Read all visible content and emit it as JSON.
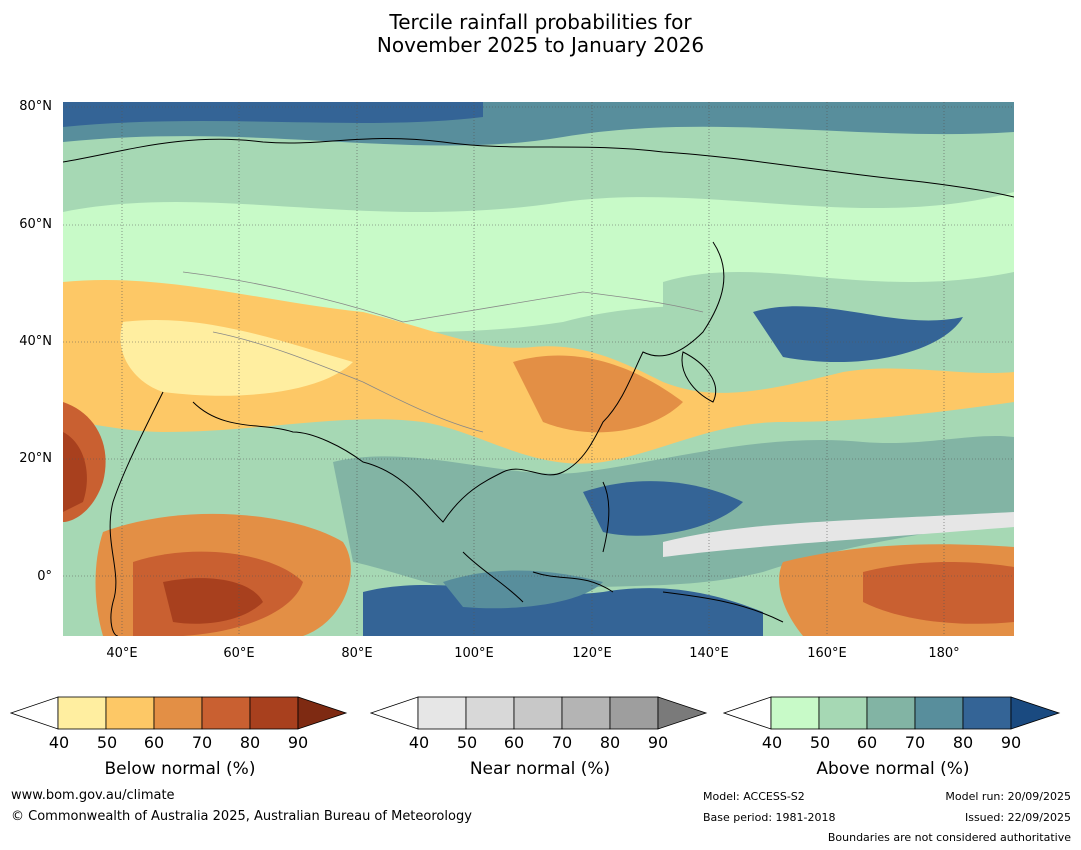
{
  "title": {
    "line1": "Tercile rainfall probabilities for",
    "line2": "November 2025 to January 2026"
  },
  "map": {
    "lat_labels": [
      "80°N",
      "60°N",
      "40°N",
      "20°N",
      "0°"
    ],
    "lon_labels": [
      "40°E",
      "60°E",
      "80°E",
      "100°E",
      "120°E",
      "140°E",
      "160°E",
      "180°"
    ]
  },
  "legend": {
    "ticks": [
      "40",
      "50",
      "60",
      "70",
      "80",
      "90"
    ],
    "below": {
      "title": "Below normal (%)",
      "colors": [
        "#ffeea0",
        "#fdc866",
        "#e38f45",
        "#c96031",
        "#a8401e",
        "#7e2a12"
      ]
    },
    "near": {
      "title": "Near normal (%)",
      "colors": [
        "#e6e6e6",
        "#d8d8d8",
        "#c8c8c8",
        "#b4b4b4",
        "#9e9e9e",
        "#7a7a7a"
      ]
    },
    "above": {
      "title": "Above normal (%)",
      "colors": [
        "#c8fac8",
        "#a6d8b4",
        "#82b4a4",
        "#588e9c",
        "#346496",
        "#1a4a80"
      ]
    }
  },
  "footer": {
    "website": "www.bom.gov.au/climate",
    "copyright": "© Commonwealth of Australia 2025, Australian Bureau of Meteorology",
    "model": "Model: ACCESS-S2",
    "base_period": "Base period: 1981-2018",
    "model_run": "Model run: 20/09/2025",
    "issued": "Issued: 22/09/2025",
    "disclaimer": "Boundaries are not considered authoritative"
  }
}
